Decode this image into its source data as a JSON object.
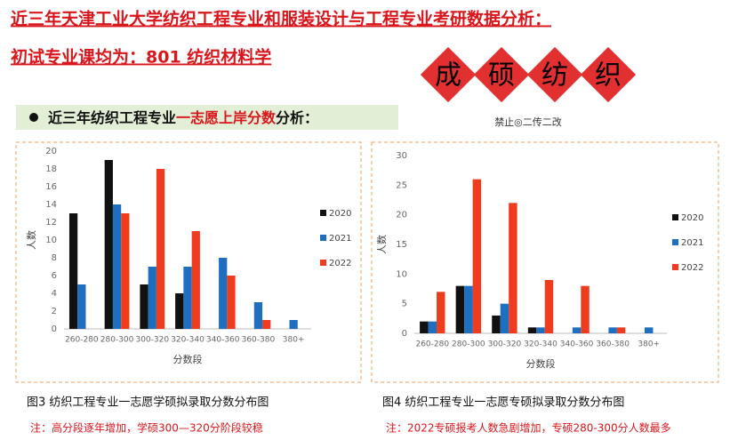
{
  "header": {
    "title": "近三年天津工业大学纺织工程专业和服装设计与工程专业考研数据分析：",
    "subtitle": "初试专业课均为：801 纺织材料学"
  },
  "stamp": {
    "chars": [
      "成",
      "硕",
      "纺",
      "织"
    ],
    "motto": "禁止◎二传二改"
  },
  "section": {
    "parts": [
      "近三年纺织工程专业",
      "一志愿上岸分数",
      "分析："
    ]
  },
  "chart_data": [
    {
      "type": "bar",
      "x_label": "分数段",
      "y_label": "人数",
      "caption": "图3 纺织工程专业一志愿学硕拟录取分数分布图",
      "note": "注：高分段逐年增加，学硕300—320分阶段较稳",
      "categories": [
        "260-280",
        "280-300",
        "300-320",
        "320-340",
        "340-360",
        "360-380",
        "380+"
      ],
      "series": [
        {
          "name": "2020",
          "color": "#111111",
          "values": [
            13,
            19,
            5,
            4,
            0,
            0,
            0
          ]
        },
        {
          "name": "2021",
          "color": "#1f6fc0",
          "values": [
            5,
            14,
            7,
            7,
            8,
            3,
            1
          ]
        },
        {
          "name": "2022",
          "color": "#f03c1e",
          "values": [
            0,
            13,
            18,
            11,
            6,
            1,
            0
          ]
        }
      ],
      "ylim": [
        0,
        20
      ],
      "yticks": [
        0,
        2,
        4,
        6,
        8,
        10,
        12,
        14,
        16,
        18,
        20
      ],
      "grid": false
    },
    {
      "type": "bar",
      "x_label": "分数段",
      "y_label": "人数",
      "caption": "图4 纺织工程专业一志愿专硕拟录取分数分布图",
      "note": "注：2022专硕报考人数急剧增加，专硕280-300分人数最多",
      "categories": [
        "260-280",
        "280-300",
        "300-320",
        "320-340",
        "340-360",
        "360-380",
        "380+"
      ],
      "series": [
        {
          "name": "2020",
          "color": "#111111",
          "values": [
            2,
            8,
            3,
            1,
            0,
            0,
            0
          ]
        },
        {
          "name": "2021",
          "color": "#1f6fc0",
          "values": [
            2,
            8,
            5,
            1,
            1,
            1,
            1
          ]
        },
        {
          "name": "2022",
          "color": "#f03c1e",
          "values": [
            7,
            26,
            22,
            9,
            8,
            1,
            0
          ]
        }
      ],
      "ylim": [
        0,
        30
      ],
      "yticks": [
        0,
        5,
        10,
        15,
        20,
        25,
        30
      ],
      "grid": false
    }
  ]
}
